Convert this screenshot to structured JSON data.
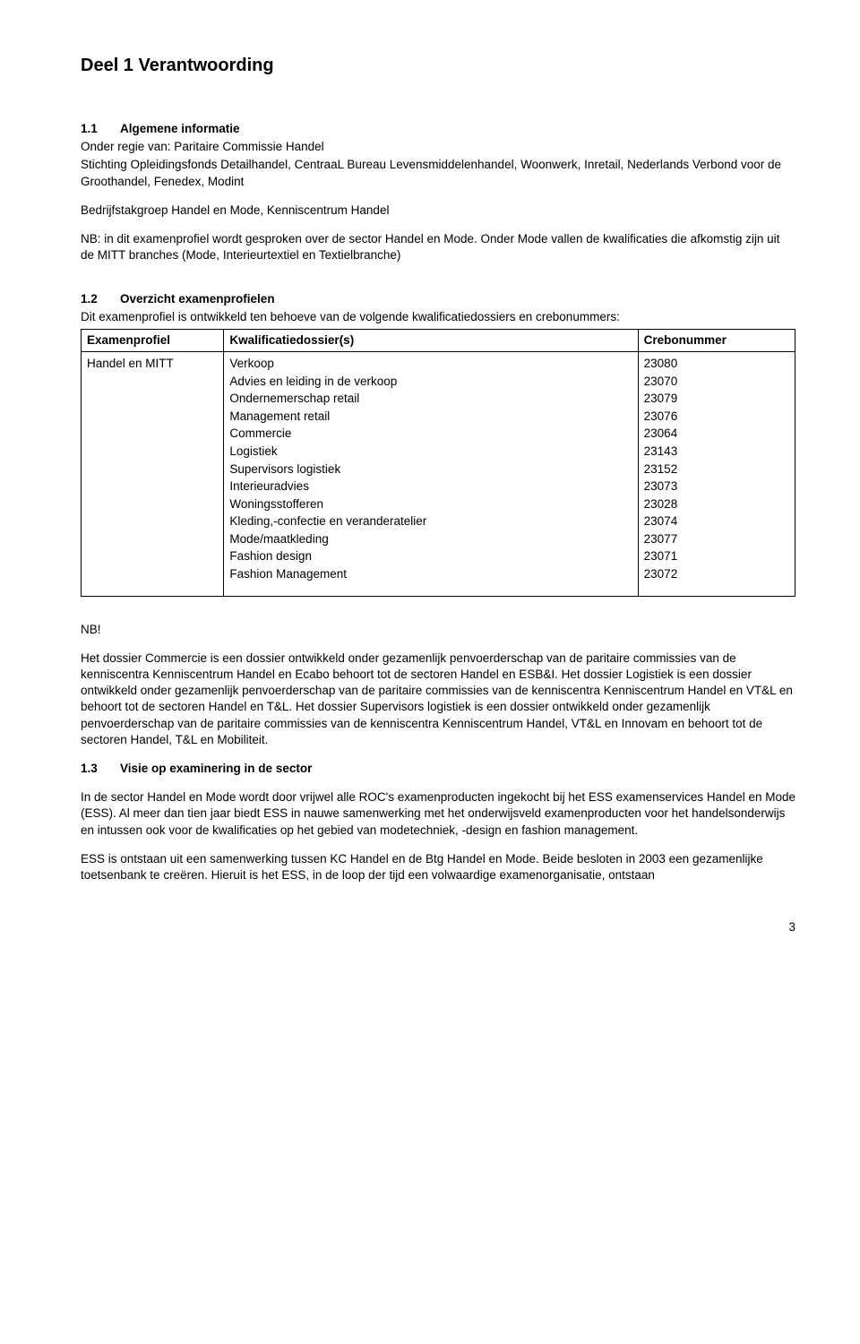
{
  "title": "Deel 1 Verantwoording",
  "s1_1_head_num": "1.1",
  "s1_1_head_title": "Algemene informatie",
  "s1_1_line1": "Onder regie van: Paritaire Commissie Handel",
  "s1_1_para1": "Stichting Opleidingsfonds Detailhandel, CentraaL Bureau Levensmiddelenhandel, Woonwerk, Inretail, Nederlands Verbond voor de Groothandel, Fenedex, Modint",
  "s1_1_para2": "Bedrijfstakgroep Handel en Mode, Kenniscentrum Handel",
  "s1_1_para3": "NB: in dit examenprofiel wordt gesproken over de sector Handel en Mode. Onder Mode vallen de kwalificaties die afkomstig zijn uit de MITT branches (Mode, Interieurtextiel en Textielbranche)",
  "s1_2_head_num": "1.2",
  "s1_2_head_title": "Overzicht examenprofielen",
  "s1_2_intro": "Dit examenprofiel is ontwikkeld ten behoeve van de volgende kwalificatiedossiers en crebonummers:",
  "table": {
    "head_profiel": "Examenprofiel",
    "head_dossiers": "Kwalificatiedossier(s)",
    "head_crebo": "Crebonummer",
    "profiel": "Handel en MITT",
    "rows": [
      {
        "d": "Verkoop",
        "c": "23080"
      },
      {
        "d": "Advies en leiding in de verkoop",
        "c": "23070"
      },
      {
        "d": "Ondernemerschap retail",
        "c": "23079"
      },
      {
        "d": "Management retail",
        "c": "23076"
      },
      {
        "d": "Commercie",
        "c": "23064"
      },
      {
        "d": "Logistiek",
        "c": "23143"
      },
      {
        "d": "Supervisors logistiek",
        "c": "23152"
      },
      {
        "d": "Interieuradvies",
        "c": "23073"
      },
      {
        "d": "Woningsstofferen",
        "c": "23028"
      },
      {
        "d": "Kleding,-confectie en veranderatelier",
        "c": "23074"
      },
      {
        "d": "Mode/maatkleding",
        "c": "23077"
      },
      {
        "d": "Fashion design",
        "c": "23071"
      },
      {
        "d": "Fashion Management",
        "c": "23072"
      }
    ]
  },
  "nb_label": "NB!",
  "nb_para": "Het dossier Commercie is een dossier ontwikkeld onder gezamenlijk penvoerderschap van de paritaire commissies van de kenniscentra Kenniscentrum Handel en Ecabo behoort tot de sectoren Handel en ESB&I. Het dossier Logistiek is een dossier ontwikkeld onder gezamenlijk penvoerderschap van de paritaire commissies van de kenniscentra Kenniscentrum Handel en VT&L en behoort tot de sectoren Handel en T&L. Het dossier Supervisors logistiek is een dossier ontwikkeld onder gezamenlijk penvoerderschap van de paritaire commissies van de kenniscentra Kenniscentrum Handel, VT&L en Innovam en behoort tot de sectoren Handel, T&L en Mobiliteit.",
  "s1_3_head_num": "1.3",
  "s1_3_head_title": "Visie op examinering in de sector",
  "s1_3_para1": "In de sector Handel en Mode wordt door vrijwel alle ROC's examenproducten ingekocht bij het ESS examenservices Handel en Mode (ESS). Al meer dan tien jaar biedt ESS in nauwe samenwerking met het onderwijsveld examenproducten voor het handelsonderwijs en intussen ook voor de kwalificaties op het gebied van modetechniek, -design en fashion management.",
  "s1_3_para2": "ESS is ontstaan uit een samenwerking tussen KC Handel en de Btg Handel en Mode. Beide besloten in 2003 een gezamenlijke toetsenbank te creëren. Hieruit is het ESS, in de loop der tijd een volwaardige examenorganisatie, ontstaan",
  "page_number": "3"
}
